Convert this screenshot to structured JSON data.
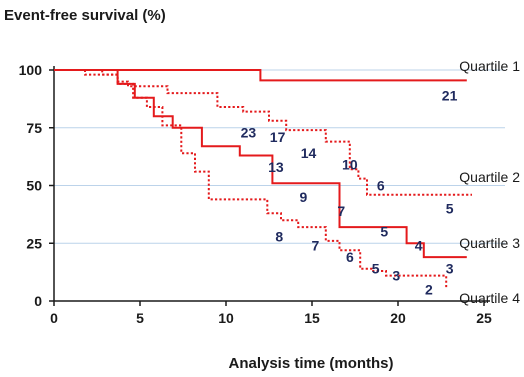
{
  "chart_data": {
    "type": "line",
    "step": true,
    "ylabel": "Event-free survival (%)",
    "xlabel": "Analysis time (months)",
    "xlim": [
      0,
      25
    ],
    "ylim": [
      0,
      100
    ],
    "x_ticks": [
      "0",
      "5",
      "10",
      "15",
      "20",
      "25"
    ],
    "y_ticks": [
      "0",
      "25",
      "50",
      "75",
      "100"
    ],
    "grid": "horizontal",
    "series_color": "#e41a1c",
    "grid_color": "#bcd3ea",
    "risk_color": "#1f2a5e",
    "series": [
      {
        "name": "Quartile 1",
        "style": "solid",
        "points": [
          [
            0,
            100
          ],
          [
            12,
            100
          ],
          [
            12,
            95.5
          ],
          [
            24,
            95.5
          ]
        ],
        "at_risk": [
          {
            "x": 23,
            "y": 89,
            "n": "21"
          }
        ]
      },
      {
        "name": "Quartile 2",
        "style": "dotted",
        "points": [
          [
            0,
            100
          ],
          [
            2.8,
            100
          ],
          [
            2.8,
            98
          ],
          [
            3.7,
            98
          ],
          [
            3.7,
            95
          ],
          [
            4.3,
            95
          ],
          [
            4.3,
            93
          ],
          [
            6.6,
            93
          ],
          [
            6.6,
            90
          ],
          [
            9.5,
            90
          ],
          [
            9.5,
            84
          ],
          [
            11,
            84
          ],
          [
            11,
            82
          ],
          [
            12.5,
            82
          ],
          [
            12.5,
            78
          ],
          [
            13.5,
            78
          ],
          [
            13.5,
            74
          ],
          [
            15.8,
            74
          ],
          [
            15.8,
            69
          ],
          [
            17.2,
            69
          ],
          [
            17.2,
            57
          ],
          [
            17.7,
            57
          ],
          [
            17.7,
            53
          ],
          [
            18.2,
            53
          ],
          [
            18.2,
            46
          ],
          [
            24.3,
            46
          ]
        ],
        "at_risk": [
          {
            "x": 11.3,
            "y": 73,
            "n": "23"
          },
          {
            "x": 13,
            "y": 71,
            "n": "17"
          },
          {
            "x": 14.8,
            "y": 64,
            "n": "14"
          },
          {
            "x": 17.2,
            "y": 59,
            "n": "10"
          },
          {
            "x": 19,
            "y": 50,
            "n": "6"
          },
          {
            "x": 23,
            "y": 40,
            "n": "5"
          }
        ]
      },
      {
        "name": "Quartile 3",
        "style": "solid",
        "points": [
          [
            0,
            100
          ],
          [
            3.7,
            100
          ],
          [
            3.7,
            94
          ],
          [
            4.7,
            94
          ],
          [
            4.7,
            88
          ],
          [
            5.8,
            88
          ],
          [
            5.8,
            80
          ],
          [
            6.9,
            80
          ],
          [
            6.9,
            75
          ],
          [
            8.6,
            75
          ],
          [
            8.6,
            67
          ],
          [
            10.8,
            67
          ],
          [
            10.8,
            63
          ],
          [
            12.7,
            63
          ],
          [
            12.7,
            51
          ],
          [
            16.6,
            51
          ],
          [
            16.6,
            32
          ],
          [
            20.5,
            32
          ],
          [
            20.5,
            25
          ],
          [
            21.5,
            25
          ],
          [
            21.5,
            19
          ],
          [
            24,
            19
          ]
        ],
        "at_risk": [
          {
            "x": 12.9,
            "y": 58,
            "n": "13"
          },
          {
            "x": 14.5,
            "y": 45,
            "n": "9"
          },
          {
            "x": 16.7,
            "y": 39,
            "n": "7"
          },
          {
            "x": 19.2,
            "y": 30,
            "n": "5"
          },
          {
            "x": 21.2,
            "y": 24,
            "n": "4"
          },
          {
            "x": 23,
            "y": 14,
            "n": "3"
          }
        ]
      },
      {
        "name": "Quartile 4",
        "style": "dotted",
        "points": [
          [
            0,
            100
          ],
          [
            1.8,
            100
          ],
          [
            1.8,
            98
          ],
          [
            3.7,
            98
          ],
          [
            3.7,
            94
          ],
          [
            4.6,
            94
          ],
          [
            4.6,
            88
          ],
          [
            5.4,
            88
          ],
          [
            5.4,
            84
          ],
          [
            6.3,
            84
          ],
          [
            6.3,
            76
          ],
          [
            7.4,
            76
          ],
          [
            7.4,
            64
          ],
          [
            8.2,
            64
          ],
          [
            8.2,
            56
          ],
          [
            9,
            56
          ],
          [
            9,
            44
          ],
          [
            12.4,
            44
          ],
          [
            12.4,
            38
          ],
          [
            13.2,
            38
          ],
          [
            13.2,
            35
          ],
          [
            14.2,
            35
          ],
          [
            14.2,
            32
          ],
          [
            15.8,
            32
          ],
          [
            15.8,
            26
          ],
          [
            16.6,
            26
          ],
          [
            16.6,
            22
          ],
          [
            17.8,
            22
          ],
          [
            17.8,
            14
          ],
          [
            18.5,
            14
          ],
          [
            18.5,
            13
          ],
          [
            19.3,
            13
          ],
          [
            19.3,
            11
          ],
          [
            22.8,
            11
          ],
          [
            22.8,
            6
          ]
        ],
        "at_risk": [
          {
            "x": 13.1,
            "y": 28,
            "n": "8"
          },
          {
            "x": 15.2,
            "y": 24,
            "n": "7"
          },
          {
            "x": 17.2,
            "y": 19,
            "n": "6"
          },
          {
            "x": 18.7,
            "y": 14,
            "n": "5"
          },
          {
            "x": 19.9,
            "y": 11,
            "n": "3"
          },
          {
            "x": 21.8,
            "y": 5,
            "n": "2"
          }
        ]
      }
    ]
  }
}
